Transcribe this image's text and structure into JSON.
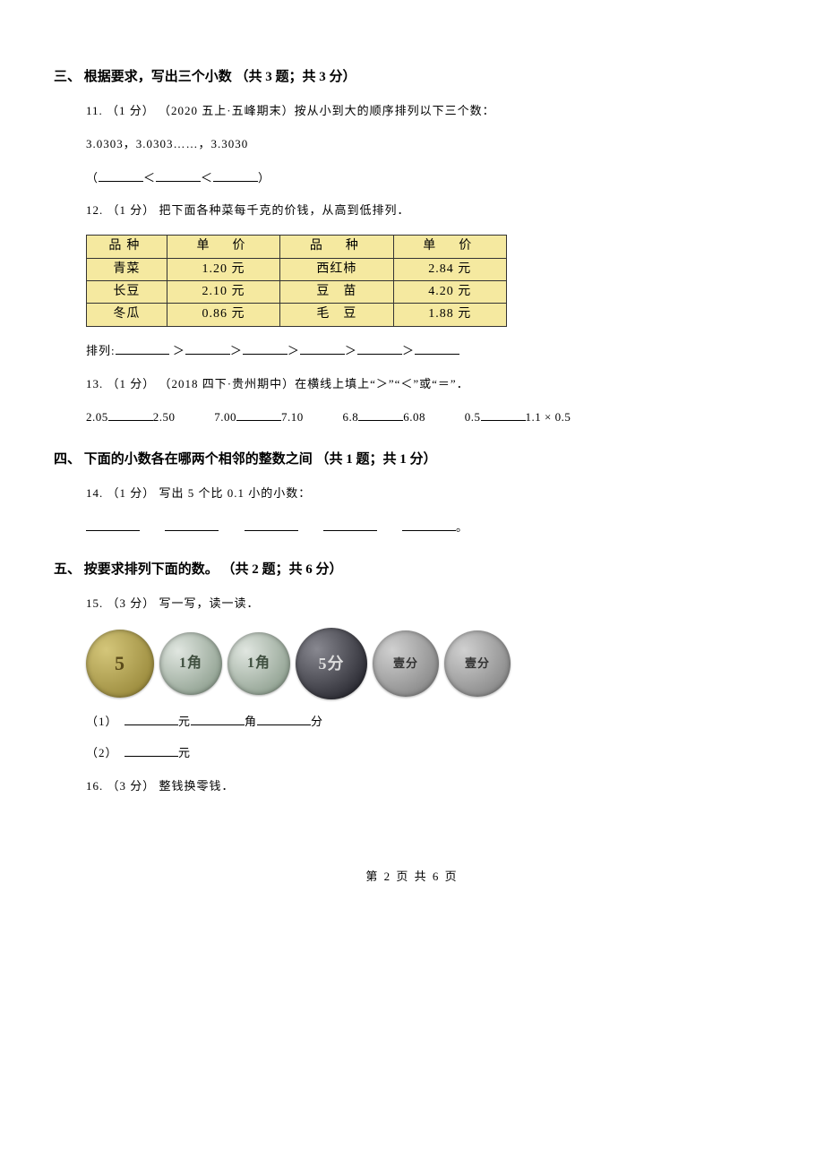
{
  "section3": {
    "title": "三、 根据要求，写出三个小数 （共 3 题；共 3 分）",
    "q11": {
      "prefix": "11. （1 分） （2020 五上·五峰期末）按从小到大的顺序排列以下三个数：",
      "numbers": "3.0303，3.0303……，3.3030",
      "answer_open": "（",
      "answer_close": "）",
      "lt": "＜"
    },
    "q12": {
      "prefix": "12. （1 分） 把下面各种菜每千克的价钱，从高到低排列．",
      "table": {
        "headers": [
          "品种",
          "单　价",
          "品　种",
          "单　价"
        ],
        "rows": [
          [
            "青菜",
            "1.20 元",
            "西红柿",
            "2.84 元"
          ],
          [
            "长豆",
            "2.10 元",
            "豆　苗",
            "4.20 元"
          ],
          [
            "冬瓜",
            "0.86 元",
            "毛　豆",
            "1.88 元"
          ]
        ]
      },
      "rank_label": "排列:",
      "gt": "＞"
    },
    "q13": {
      "prefix": "13. （1 分） （2018 四下·贵州期中）在横线上填上“＞”“＜”或“＝”．",
      "pairs": [
        {
          "a": "2.05",
          "b": "2.50"
        },
        {
          "a": "7.00",
          "b": "7.10"
        },
        {
          "a": "6.8",
          "b": "6.08"
        },
        {
          "a": "0.5",
          "b": "1.1 × 0.5"
        }
      ]
    }
  },
  "section4": {
    "title": "四、 下面的小数各在哪两个相邻的整数之间 （共 1 题；共 1 分）",
    "q14": {
      "prefix": "14. （1 分） 写出 5 个比 0.1 小的小数：",
      "end": "。"
    }
  },
  "section5": {
    "title": "五、 按要求排列下面的数。 （共 2 题；共 6 分）",
    "q15": {
      "prefix": "15. （3 分） 写一写，读一读．",
      "coins": [
        {
          "cls": "coin-5jiao",
          "glyph": "5"
        },
        {
          "cls": "coin-1jiao",
          "glyph": "1角"
        },
        {
          "cls": "coin-1jiao",
          "glyph": "1角"
        },
        {
          "cls": "coin-5fen",
          "glyph": "5分"
        },
        {
          "cls": "coin-1fen",
          "glyph": "壹分"
        },
        {
          "cls": "coin-1fen",
          "glyph": "壹分"
        }
      ],
      "sub1_prefix": "（1）　",
      "sub1_units": [
        "元",
        "角",
        "分"
      ],
      "sub2_prefix": "（2）　",
      "sub2_unit": "元"
    },
    "q16": {
      "prefix": "16. （3 分） 整钱换零钱．"
    }
  },
  "footer": "第 2 页 共 6 页"
}
